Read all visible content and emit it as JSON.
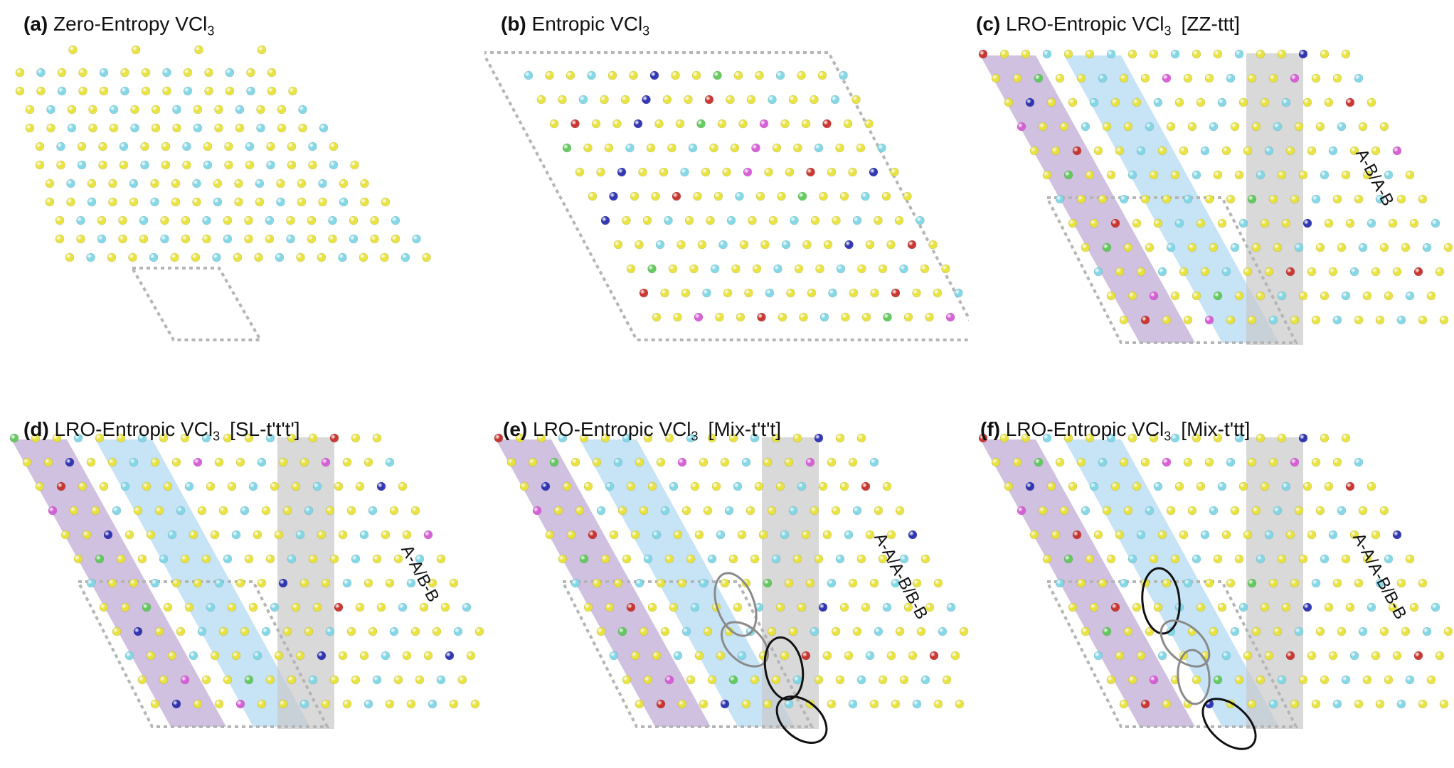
{
  "panels": [
    {
      "id": "a",
      "letter": "(a)",
      "title": "Zero-Entropy VCl",
      "sub": "3",
      "tag": "",
      "stack_label": "",
      "type": "zero"
    },
    {
      "id": "b",
      "letter": "(b)",
      "title": "Entropic VCl",
      "sub": "3",
      "tag": "",
      "stack_label": "",
      "type": "entropic"
    },
    {
      "id": "c",
      "letter": "(c)",
      "title": "LRO-Entropic VCl",
      "sub": "3",
      "tag": "[ZZ-ttt]",
      "stack_label": "A-B/A-B",
      "type": "lro",
      "ellipses": "none"
    },
    {
      "id": "d",
      "letter": "(d)",
      "title": "LRO-Entropic VCl",
      "sub": "3",
      "tag": "[SL-t't't']",
      "stack_label": "A-A/B-B",
      "type": "lro",
      "ellipses": "none"
    },
    {
      "id": "e",
      "letter": "(e)",
      "title": "LRO-Entropic VCl",
      "sub": "3",
      "tag": "[Mix-t't't]",
      "stack_label": "A-A/A-B/B-B",
      "type": "lro",
      "ellipses": "e"
    },
    {
      "id": "f",
      "letter": "(f)",
      "title": "LRO-Entropic VCl",
      "sub": "3",
      "tag": "[Mix-t'tt]",
      "stack_label": "A-A/A-B/B-B",
      "type": "lro",
      "ellipses": "f"
    }
  ],
  "colors": {
    "chlorine": "#e8e23a",
    "vanadium": "#7fd6e6",
    "magenta": "#d65ad6",
    "green": "#5fc85a",
    "blue": "#2a2fb0",
    "red": "#c8302a",
    "band_purple": "#b9a0d0",
    "band_blue": "#a9d6f2",
    "band_gray": "#c9c9c9",
    "cell_outline": "#b5b5b5"
  }
}
